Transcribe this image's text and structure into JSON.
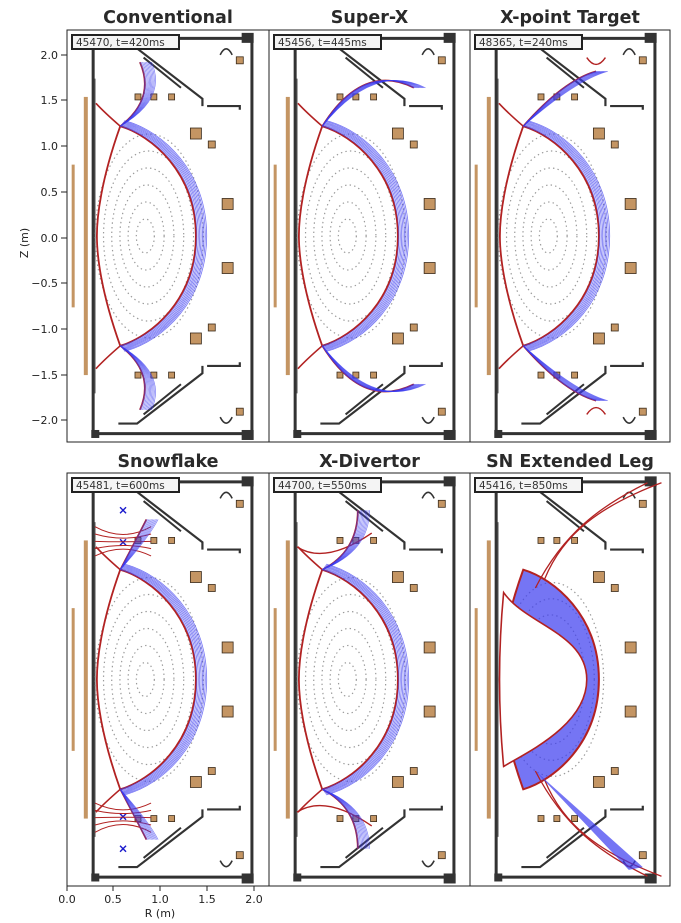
{
  "figure": {
    "y_axis_label": "Z (m)",
    "x_axis_label": "R (m)",
    "y_ticks": [
      "2.0",
      "1.5",
      "1.0",
      "0.5",
      "0.0",
      "−0.5",
      "−1.0",
      "−1.5",
      "−2.0"
    ],
    "x_ticks": [
      "0.0",
      "0.5",
      "1.0",
      "1.5",
      "2.0"
    ]
  },
  "panels": [
    {
      "title": "Conventional",
      "shot_label": "45470, t=420ms",
      "config": "conventional"
    },
    {
      "title": "Super-X",
      "shot_label": "45456, t=445ms",
      "config": "superx"
    },
    {
      "title": "X-point Target",
      "shot_label": "48365, t=240ms",
      "config": "xpt"
    },
    {
      "title": "Snowflake",
      "shot_label": "45481, t=600ms",
      "config": "snowflake"
    },
    {
      "title": "X-Divertor",
      "shot_label": "44700, t=550ms",
      "config": "xdivertor"
    },
    {
      "title": "SN Extended Leg",
      "shot_label": "45416, t=850ms",
      "config": "snel"
    }
  ],
  "colors": {
    "separatrix": "#b22222",
    "sol_flux": "#3a3af0",
    "core_flux": "#9a9a9a",
    "coil_fill": "#c49563",
    "coil_edge": "#3a2a1a",
    "wall": "#333333",
    "x_point_marker": "#1a1acc"
  }
}
